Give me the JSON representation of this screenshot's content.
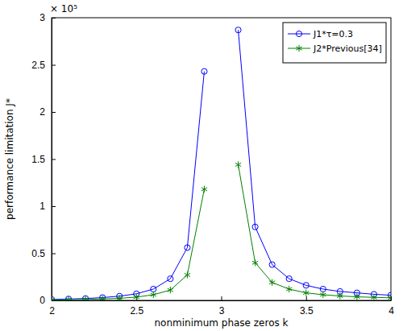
{
  "chart_data": {
    "type": "line",
    "x_label": "nonminimum phase zeros k",
    "y_label": "performance limitation J*",
    "annotations": [
      "× 10⁵"
    ],
    "x": [
      2,
      2.1,
      2.2,
      2.3,
      2.4,
      2.5,
      2.6,
      2.7,
      2.8,
      2.9,
      3,
      3.1,
      3.2,
      3.3,
      3.4,
      3.5,
      3.6,
      3.7,
      3.8,
      3.9,
      4
    ],
    "series": [
      {
        "name": "J1*τ=0.3",
        "color": "#0000ff",
        "marker": "circle",
        "line_style": "solid",
        "values": [
          0.01,
          0.015,
          0.02,
          0.03,
          0.045,
          0.07,
          0.12,
          0.23,
          0.56,
          2.43,
          null,
          2.87,
          0.78,
          0.38,
          0.23,
          0.16,
          0.12,
          0.095,
          0.08,
          0.065,
          0.055
        ]
      },
      {
        "name": "J2*Previous[34]",
        "color": "#008000",
        "marker": "asterisk",
        "line_style": "solid",
        "values": [
          0.005,
          0.007,
          0.01,
          0.015,
          0.022,
          0.035,
          0.06,
          0.11,
          0.27,
          1.18,
          null,
          1.44,
          0.4,
          0.19,
          0.12,
          0.08,
          0.06,
          0.047,
          0.038,
          0.032,
          0.027
        ]
      }
    ],
    "xlim": [
      2,
      4
    ],
    "xticks": [
      2,
      2.5,
      3,
      3.5,
      4
    ],
    "ylim": [
      0,
      3
    ],
    "yticks": [
      0,
      0.5,
      1,
      1.5,
      2,
      2.5,
      3
    ],
    "legend": "top-right",
    "grid": false
  }
}
